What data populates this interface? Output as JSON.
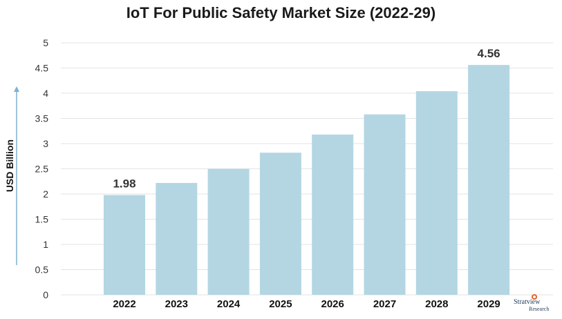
{
  "chart_data": {
    "type": "bar",
    "title": "IoT For Public Safety Market Size (2022-29)",
    "ylabel": "USD Billion",
    "xlabel": "",
    "categories": [
      "2022",
      "2023",
      "2024",
      "2025",
      "2026",
      "2027",
      "2028",
      "2029"
    ],
    "values": [
      1.98,
      2.22,
      2.5,
      2.82,
      3.18,
      3.58,
      4.04,
      4.56
    ],
    "data_labels": {
      "2022": "1.98",
      "2029": "4.56"
    },
    "ylim": [
      0,
      5
    ],
    "yticks": [
      "0",
      "0.5",
      "1",
      "1.5",
      "2",
      "2.5",
      "3",
      "3.5",
      "4",
      "4.5",
      "5"
    ],
    "grid": true,
    "bar_color": "#b4d6e3",
    "axis_arrow_color": "#7fb2cf"
  },
  "logo": {
    "name": "Stratview",
    "sub": "Research"
  }
}
